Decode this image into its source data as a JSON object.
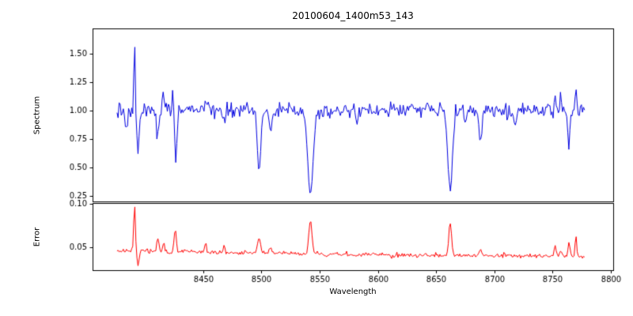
{
  "figure": {
    "title": "20100604_1400m53_143",
    "xlabel": "Wavelength",
    "background": "#ffffff",
    "spine_color": "#000000"
  },
  "chart_data": [
    {
      "type": "line",
      "name": "spectrum",
      "title": "20100604_1400m53_143",
      "ylabel": "Spectrum",
      "color": "#0000e0",
      "xlim": [
        8355,
        8802
      ],
      "ylim": [
        0.2,
        1.72
      ],
      "yticks": [
        0.25,
        0.5,
        0.75,
        1.0,
        1.25,
        1.5
      ],
      "ytick_labels": [
        "0.25",
        "0.50",
        "0.75",
        "1.00",
        "1.25",
        "1.50"
      ],
      "x_range": [
        8376,
        8778
      ],
      "step": 0.9,
      "continuum": 1.0,
      "noise_sigma": 0.033,
      "seed": 20100604,
      "features": [
        {
          "x": 8384,
          "v": 0.86,
          "w": 0.8
        },
        {
          "x": 8391,
          "v": 1.66,
          "w": 0.55
        },
        {
          "x": 8394,
          "v": 0.62,
          "w": 0.9
        },
        {
          "x": 8411,
          "v": 0.77,
          "w": 1.1
        },
        {
          "x": 8415.5,
          "v": 1.18,
          "w": 0.7
        },
        {
          "x": 8424,
          "v": 1.16,
          "w": 0.6
        },
        {
          "x": 8426.5,
          "v": 0.54,
          "w": 0.9
        },
        {
          "x": 8452,
          "v": 1.12,
          "w": 0.7
        },
        {
          "x": 8468,
          "v": 0.88,
          "w": 0.9
        },
        {
          "x": 8498,
          "v": 0.47,
          "w": 1.5
        },
        {
          "x": 8508,
          "v": 0.79,
          "w": 1.1
        },
        {
          "x": 8542,
          "v": 0.265,
          "w": 2.3
        },
        {
          "x": 8582,
          "v": 0.88,
          "w": 0.9
        },
        {
          "x": 8662,
          "v": 0.3,
          "w": 2.0
        },
        {
          "x": 8675,
          "v": 0.85,
          "w": 0.9
        },
        {
          "x": 8688,
          "v": 0.71,
          "w": 1.1
        },
        {
          "x": 8718,
          "v": 0.88,
          "w": 0.9
        },
        {
          "x": 8752,
          "v": 1.12,
          "w": 0.7
        },
        {
          "x": 8757,
          "v": 1.1,
          "w": 0.6
        },
        {
          "x": 8764,
          "v": 0.66,
          "w": 0.9
        },
        {
          "x": 8770,
          "v": 1.22,
          "w": 0.6
        }
      ]
    },
    {
      "type": "line",
      "name": "error",
      "ylabel": "Error",
      "xlabel": "Wavelength",
      "color": "#ff0000",
      "xlim": [
        8355,
        8802
      ],
      "ylim": [
        0.023,
        0.101
      ],
      "yticks": [
        0.05,
        0.1
      ],
      "ytick_labels": [
        "0.05",
        "0.10"
      ],
      "xticks": [
        8450,
        8500,
        8550,
        8600,
        8650,
        8700,
        8750,
        8800
      ],
      "xtick_labels": [
        "8450",
        "8500",
        "8550",
        "8600",
        "8650",
        "8700",
        "8750",
        "8800"
      ],
      "x_range": [
        8376,
        8778
      ],
      "step": 0.9,
      "noise_sigma": 0.0013,
      "seed": 143,
      "baseline": [
        [
          8376,
          0.046
        ],
        [
          8440,
          0.044
        ],
        [
          8500,
          0.0435
        ],
        [
          8560,
          0.042
        ],
        [
          8620,
          0.0405
        ],
        [
          8700,
          0.04
        ],
        [
          8750,
          0.0395
        ],
        [
          8778,
          0.038
        ]
      ],
      "features": [
        {
          "x": 8391,
          "v": 0.1,
          "w": 0.7
        },
        {
          "x": 8394,
          "v": 0.029,
          "w": 0.8
        },
        {
          "x": 8411,
          "v": 0.06,
          "w": 0.9
        },
        {
          "x": 8416,
          "v": 0.054,
          "w": 0.7
        },
        {
          "x": 8426,
          "v": 0.071,
          "w": 0.9
        },
        {
          "x": 8452,
          "v": 0.056,
          "w": 0.7
        },
        {
          "x": 8468,
          "v": 0.051,
          "w": 0.8
        },
        {
          "x": 8498,
          "v": 0.059,
          "w": 1.2
        },
        {
          "x": 8508,
          "v": 0.05,
          "w": 1.0
        },
        {
          "x": 8542,
          "v": 0.081,
          "w": 1.3
        },
        {
          "x": 8662,
          "v": 0.079,
          "w": 1.2
        },
        {
          "x": 8688,
          "v": 0.046,
          "w": 1.0
        },
        {
          "x": 8752,
          "v": 0.051,
          "w": 0.8
        },
        {
          "x": 8757,
          "v": 0.049,
          "w": 0.7
        },
        {
          "x": 8764,
          "v": 0.055,
          "w": 0.8
        },
        {
          "x": 8770,
          "v": 0.064,
          "w": 0.7
        }
      ]
    }
  ]
}
